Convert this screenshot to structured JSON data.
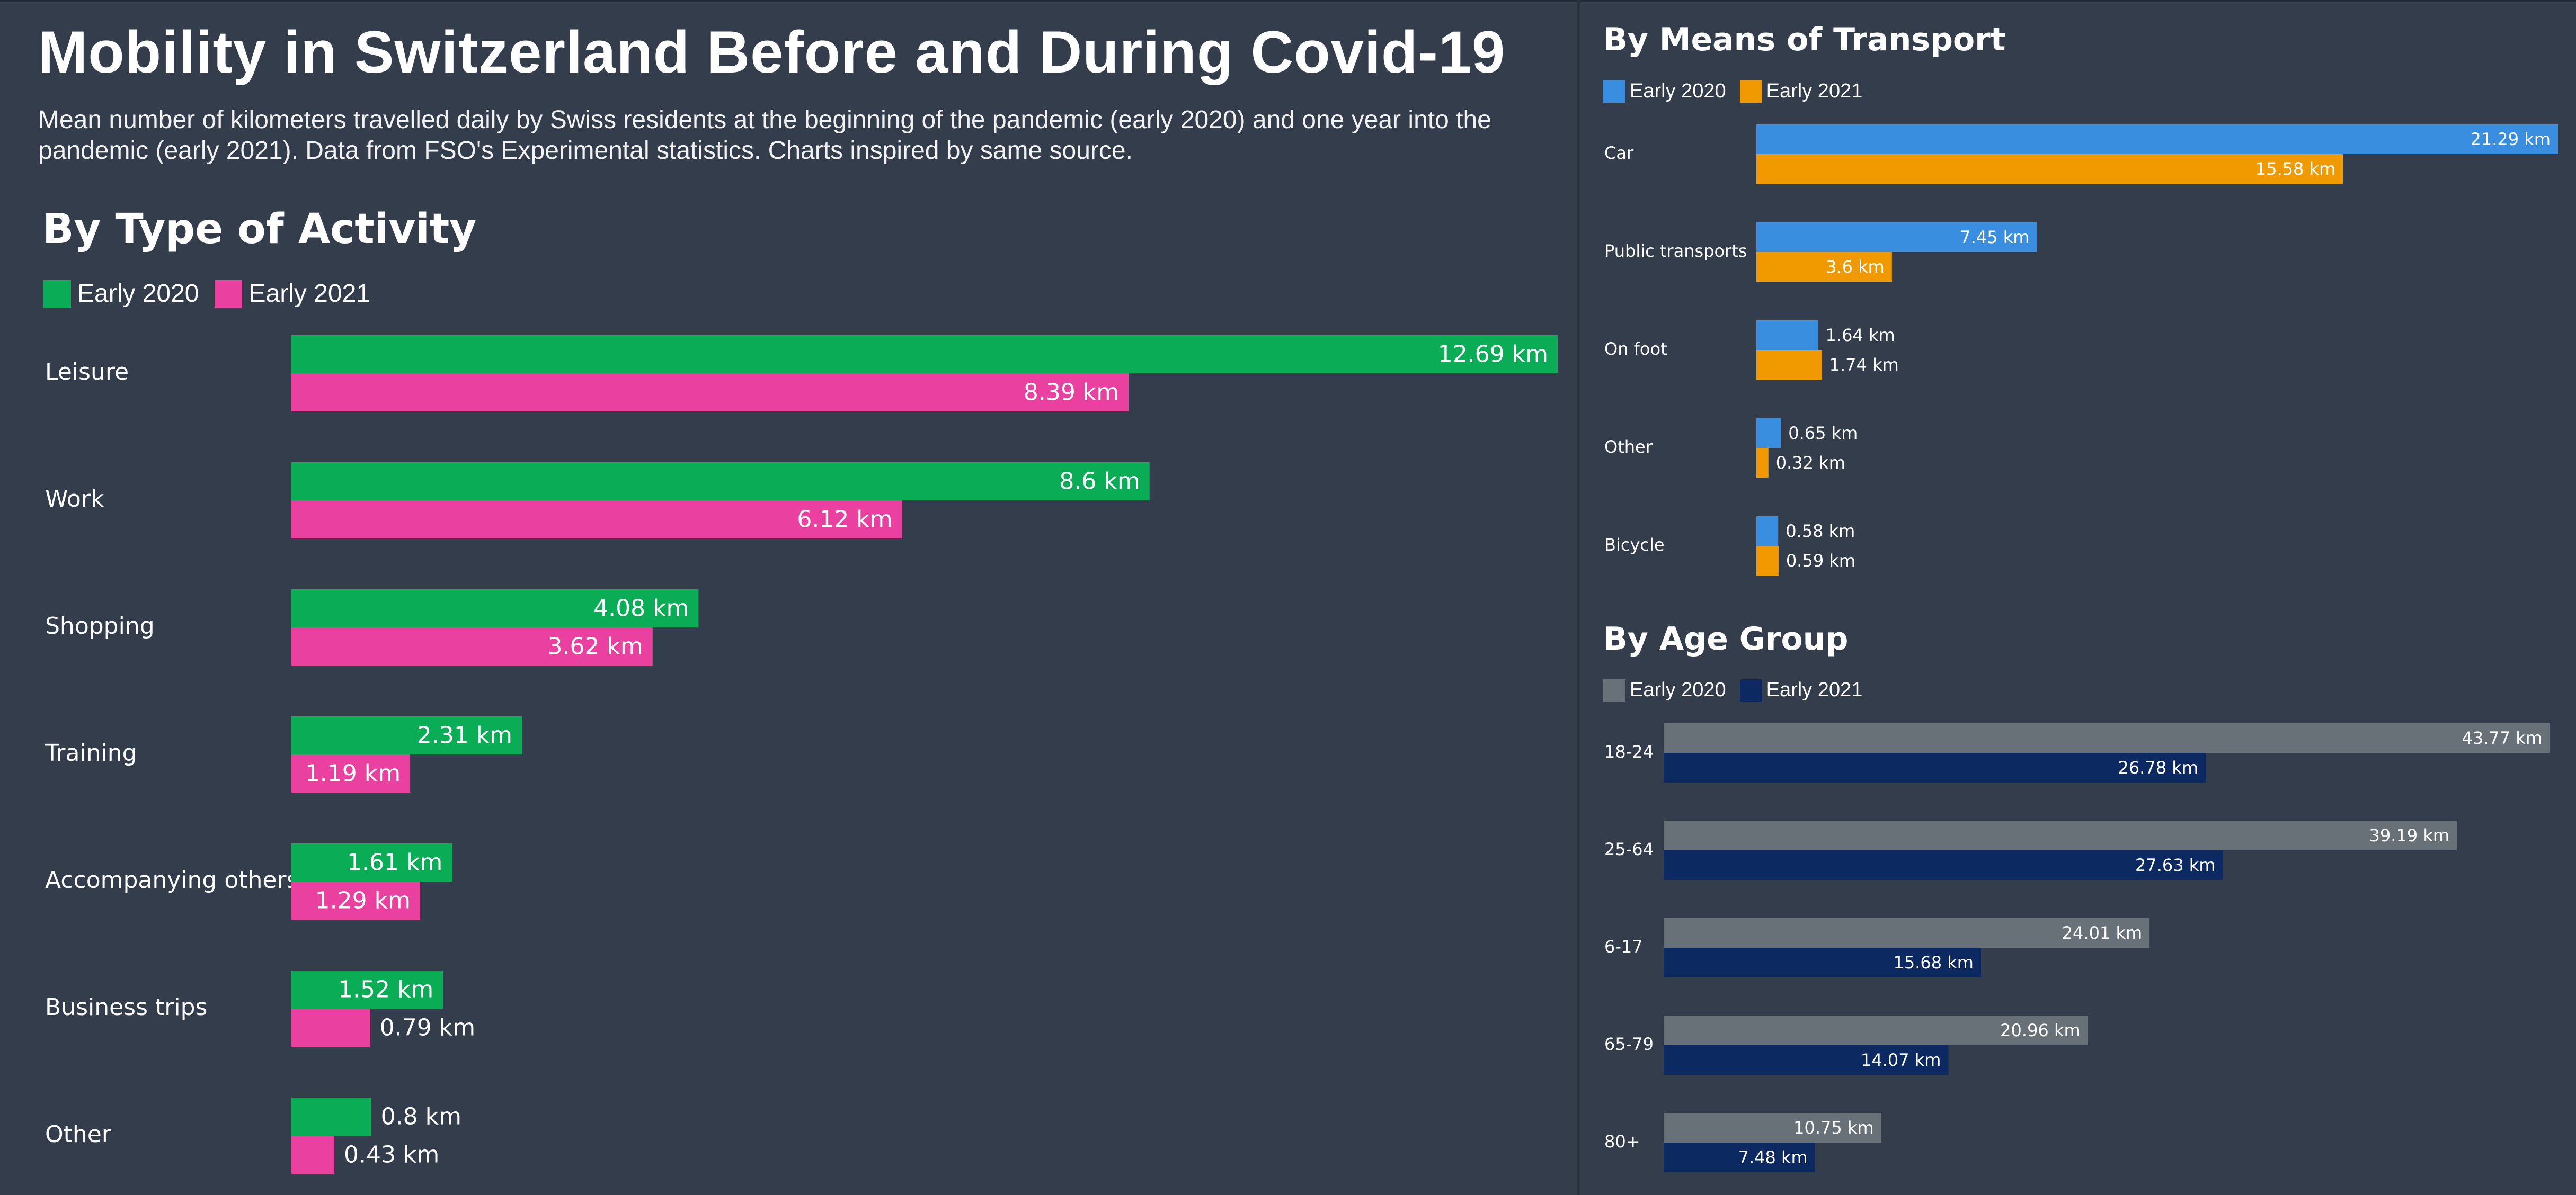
{
  "page": {
    "title": "Mobility in Switzerland Before and During Covid-19",
    "subtitle": "Mean number of kilometers travelled daily by Swiss residents at the beginning of the pandemic (early 2020) and one year into the pandemic (early 2021). Data from FSO's Experimental statistics. Charts inspired by same source."
  },
  "chart_data": [
    {
      "type": "bar",
      "orientation": "horizontal",
      "title": "By Type of Activity",
      "categories": [
        "Leisure",
        "Work",
        "Shopping",
        "Training",
        "Accompanying others",
        "Business trips",
        "Other"
      ],
      "series": [
        {
          "name": "Early 2020",
          "color": "#0aad55",
          "values": [
            12.69,
            8.6,
            4.08,
            2.31,
            1.61,
            1.52,
            0.8
          ]
        },
        {
          "name": "Early 2021",
          "color": "#ea40a0",
          "values": [
            8.39,
            6.12,
            3.62,
            1.19,
            1.29,
            0.79,
            0.43
          ]
        }
      ],
      "unit": "km",
      "legend": "top-left",
      "grid": false,
      "xlim": [
        0,
        12.69
      ]
    },
    {
      "type": "bar",
      "orientation": "horizontal",
      "title": "By Means of Transport",
      "categories": [
        "Car",
        "Public transports",
        "On foot",
        "Other",
        "Bicycle"
      ],
      "series": [
        {
          "name": "Early 2020",
          "color": "#3a8ee0",
          "values": [
            21.29,
            7.45,
            1.64,
            0.65,
            0.58
          ]
        },
        {
          "name": "Early 2021",
          "color": "#f09a00",
          "values": [
            15.58,
            3.6,
            1.74,
            0.32,
            0.59
          ]
        }
      ],
      "unit": "km",
      "legend": "top-left",
      "grid": false,
      "xlim": [
        0,
        21.29
      ]
    },
    {
      "type": "bar",
      "orientation": "horizontal",
      "title": "By Age Group",
      "categories": [
        "18-24",
        "25-64",
        "6-17",
        "65-79",
        "80+"
      ],
      "series": [
        {
          "name": "Early 2020",
          "color": "#687178",
          "values": [
            43.77,
            39.19,
            24.01,
            20.96,
            10.75
          ]
        },
        {
          "name": "Early 2021",
          "color": "#0c2961",
          "values": [
            26.78,
            27.63,
            15.68,
            14.07,
            7.48
          ]
        }
      ],
      "unit": "km",
      "legend": "top-left",
      "grid": false,
      "xlim": [
        0,
        43.77
      ]
    }
  ]
}
